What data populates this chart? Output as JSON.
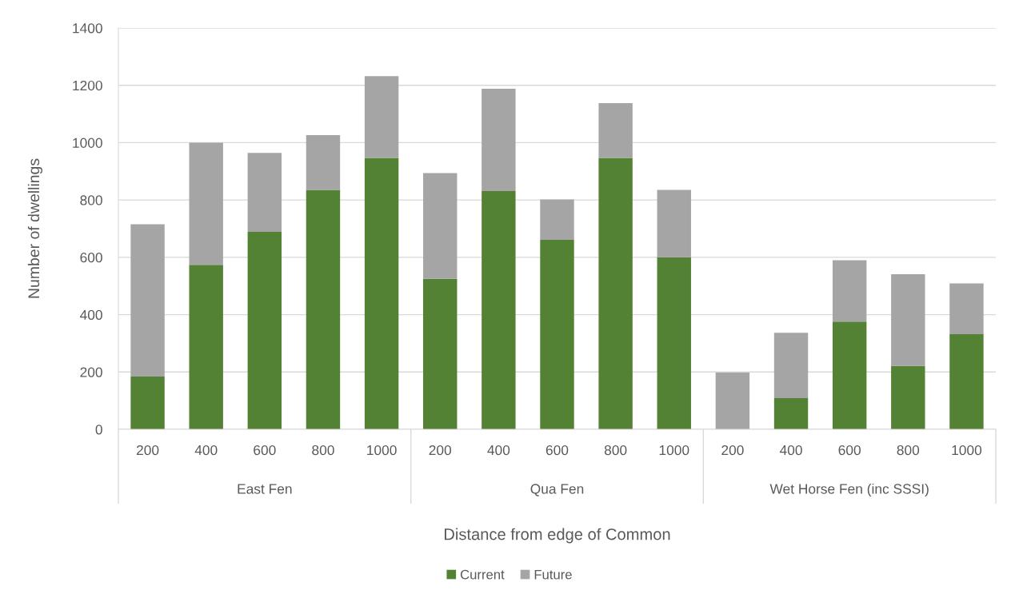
{
  "chart_data": {
    "type": "bar",
    "xlabel": "Distance from edge of Common",
    "ylabel": "Number of dwellings",
    "categories": [
      "200",
      "400",
      "600",
      "800",
      "1000",
      "200",
      "400",
      "600",
      "800",
      "1000",
      "200",
      "400",
      "600",
      "800",
      "1000"
    ],
    "series": [
      {
        "name": "Current",
        "color": "#548235",
        "values": [
          184,
          574,
          689,
          835,
          947,
          525,
          831,
          661,
          947,
          600,
          0,
          109,
          376,
          221,
          332
        ]
      },
      {
        "name": "Future",
        "color": "#a5a5a5",
        "values": [
          531,
          426,
          275,
          191,
          285,
          369,
          357,
          141,
          191,
          235,
          198,
          228,
          214,
          320,
          177
        ]
      }
    ],
    "stacked": true,
    "ylim": [
      0,
      1400
    ],
    "yticks": [
      0,
      200,
      400,
      600,
      800,
      1000,
      1200,
      1400
    ],
    "grid": "y",
    "legend": "bottom",
    "annotations": [
      "East Fen",
      "Qua Fen",
      "Wet Horse Fen (inc SSSI)"
    ]
  }
}
